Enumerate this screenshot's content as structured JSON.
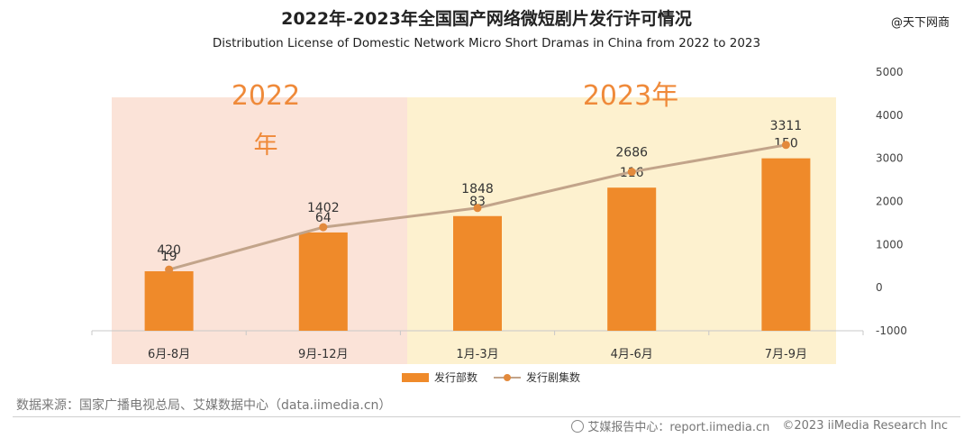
{
  "header": {
    "title": "2022年-2023年全国国产网络微短剧片发行许可情况",
    "subtitle": "Distribution License of Domestic Network Micro Short Dramas in China from 2022 to 2023",
    "watermark": "@天下网商"
  },
  "chart_data": {
    "type": "bar",
    "categories": [
      "6月-8月",
      "9月-12月",
      "1月-3月",
      "4月-6月",
      "7月-9月"
    ],
    "period_labels": [
      "2022",
      "年",
      "2023年"
    ],
    "series": [
      {
        "name": "发行部数",
        "type": "bar",
        "values": [
          19,
          64,
          83,
          116,
          150
        ],
        "data_labels": [
          "19",
          "64",
          "83",
          "116",
          "150"
        ]
      },
      {
        "name": "发行剧集数",
        "type": "line",
        "values": [
          420,
          1402,
          1848,
          2686,
          3311
        ],
        "data_labels": [
          "420",
          "1402",
          "1848",
          "2686",
          "3311"
        ]
      }
    ],
    "y_right": {
      "ticks": [
        "5000",
        "4000",
        "3000",
        "2000",
        "1000",
        "0",
        "-1000"
      ],
      "range": [
        -1000,
        5000
      ]
    },
    "bar_scale": {
      "range": [
        -50,
        250
      ]
    },
    "grid": false,
    "legend_placement": "bottom-center",
    "colors": {
      "bar": "#ef8a2a",
      "line": "#c2a48a",
      "marker": "#e38a3c",
      "band_2022": "#fbe3d8",
      "band_2023": "#fdf1cf",
      "period_text": "#ef8a3a"
    }
  },
  "footer": {
    "source": "数据来源：国家广播电视总局、艾媒数据中心（data.iimedia.cn）",
    "report": "艾媒报告中心：report.iimedia.cn",
    "copyright": "©2023  iiMedia Research Inc"
  }
}
